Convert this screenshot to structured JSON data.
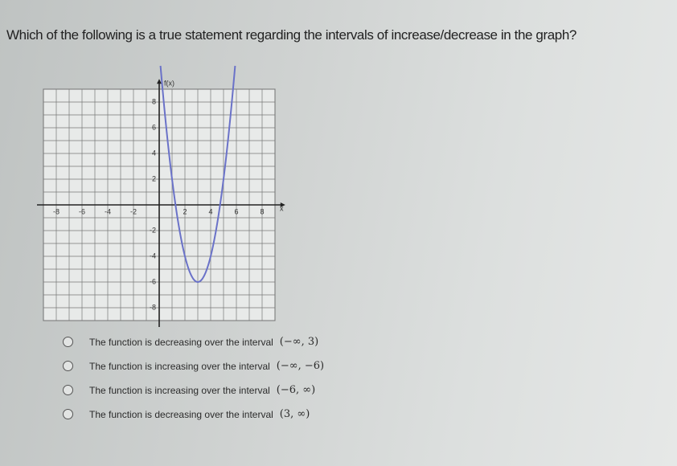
{
  "question": "Which of the following is a true statement regarding the intervals of increase/decrease in the graph?",
  "graph": {
    "y_label": "f(x)",
    "x_label": "x",
    "x_ticks": [
      -8,
      -6,
      -4,
      -2,
      2,
      4,
      6,
      8
    ],
    "y_ticks": [
      8,
      6,
      4,
      2,
      -2,
      -4,
      -6,
      -8
    ]
  },
  "options": [
    {
      "text": "The function is decreasing over the interval",
      "interval": "(−∞, 3)"
    },
    {
      "text": "The function is increasing over the interval",
      "interval": "(−∞, −6)"
    },
    {
      "text": "The function is increasing over the interval",
      "interval": "(−6, ∞)"
    },
    {
      "text": "The function is decreasing over the interval",
      "interval": "(3, ∞)"
    }
  ]
}
